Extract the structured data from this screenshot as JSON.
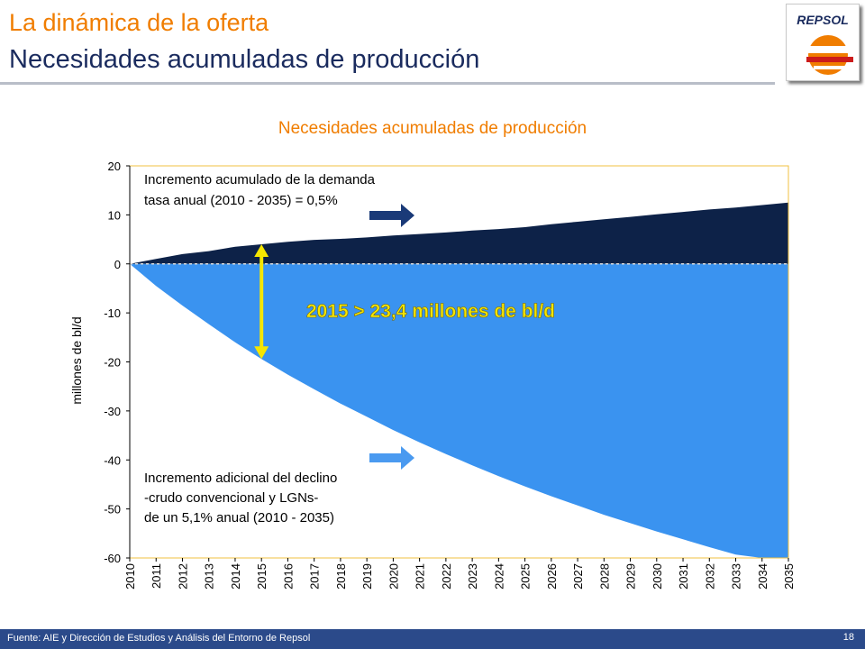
{
  "header": {
    "title_line1": "La dinámica de la oferta",
    "title_line2": "Necesidades  acumuladas  de  producción",
    "logo_text": "REPSOL"
  },
  "chart_data": {
    "type": "area",
    "title": "Necesidades  acumuladas  de  producción",
    "xlabel": "",
    "ylabel": "millones de bl/d",
    "ylim": [
      -60,
      20
    ],
    "yticks": [
      20,
      10,
      0,
      -10,
      -20,
      -30,
      -40,
      -50,
      -60
    ],
    "x": [
      2010,
      2011,
      2012,
      2013,
      2014,
      2015,
      2016,
      2017,
      2018,
      2019,
      2020,
      2021,
      2022,
      2023,
      2024,
      2025,
      2026,
      2027,
      2028,
      2029,
      2030,
      2031,
      2032,
      2033,
      2034,
      2035
    ],
    "series": [
      {
        "values": [
          0,
          1,
          2,
          2.6,
          3.5,
          4,
          4.5,
          4.9,
          5.1,
          5.4,
          5.8,
          6.1,
          6.4,
          6.8,
          7.1,
          7.5,
          8.1,
          8.6,
          9.1,
          9.6,
          10.1,
          10.6,
          11.1,
          11.5,
          12,
          12.5
        ]
      },
      {
        "values": [
          0,
          -4.5,
          -8.5,
          -12.3,
          -16,
          -19.4,
          -22.6,
          -25.6,
          -28.5,
          -31.2,
          -33.9,
          -36.4,
          -38.8,
          -41.1,
          -43.3,
          -45.4,
          -47.4,
          -49.3,
          -51.2,
          -52.9,
          -54.6,
          -56.2,
          -57.8,
          -59.3,
          -60,
          -60
        ]
      }
    ],
    "colors": {
      "demand": "#0d2248",
      "decline": "#3a93f0",
      "arrow_highlight": "#f5e600",
      "plot_border": "#f0c040"
    },
    "annotations": {
      "demand_line1": "Incremento acumulado de la demanda",
      "demand_line2": "tasa anual (2010 - 2035) = 0,5%",
      "highlight": "2015 > 23,4 millones de bl/d",
      "decline_line1": "Incremento adicional del declino",
      "decline_line2": "-crudo convencional y LGNs-",
      "decline_line3": "de un 5,1% anual (2010 - 2035)"
    }
  },
  "footer": {
    "source": "Fuente: AIE y  Dirección de Estudios y Análisis del Entorno de Repsol",
    "page": "18"
  }
}
